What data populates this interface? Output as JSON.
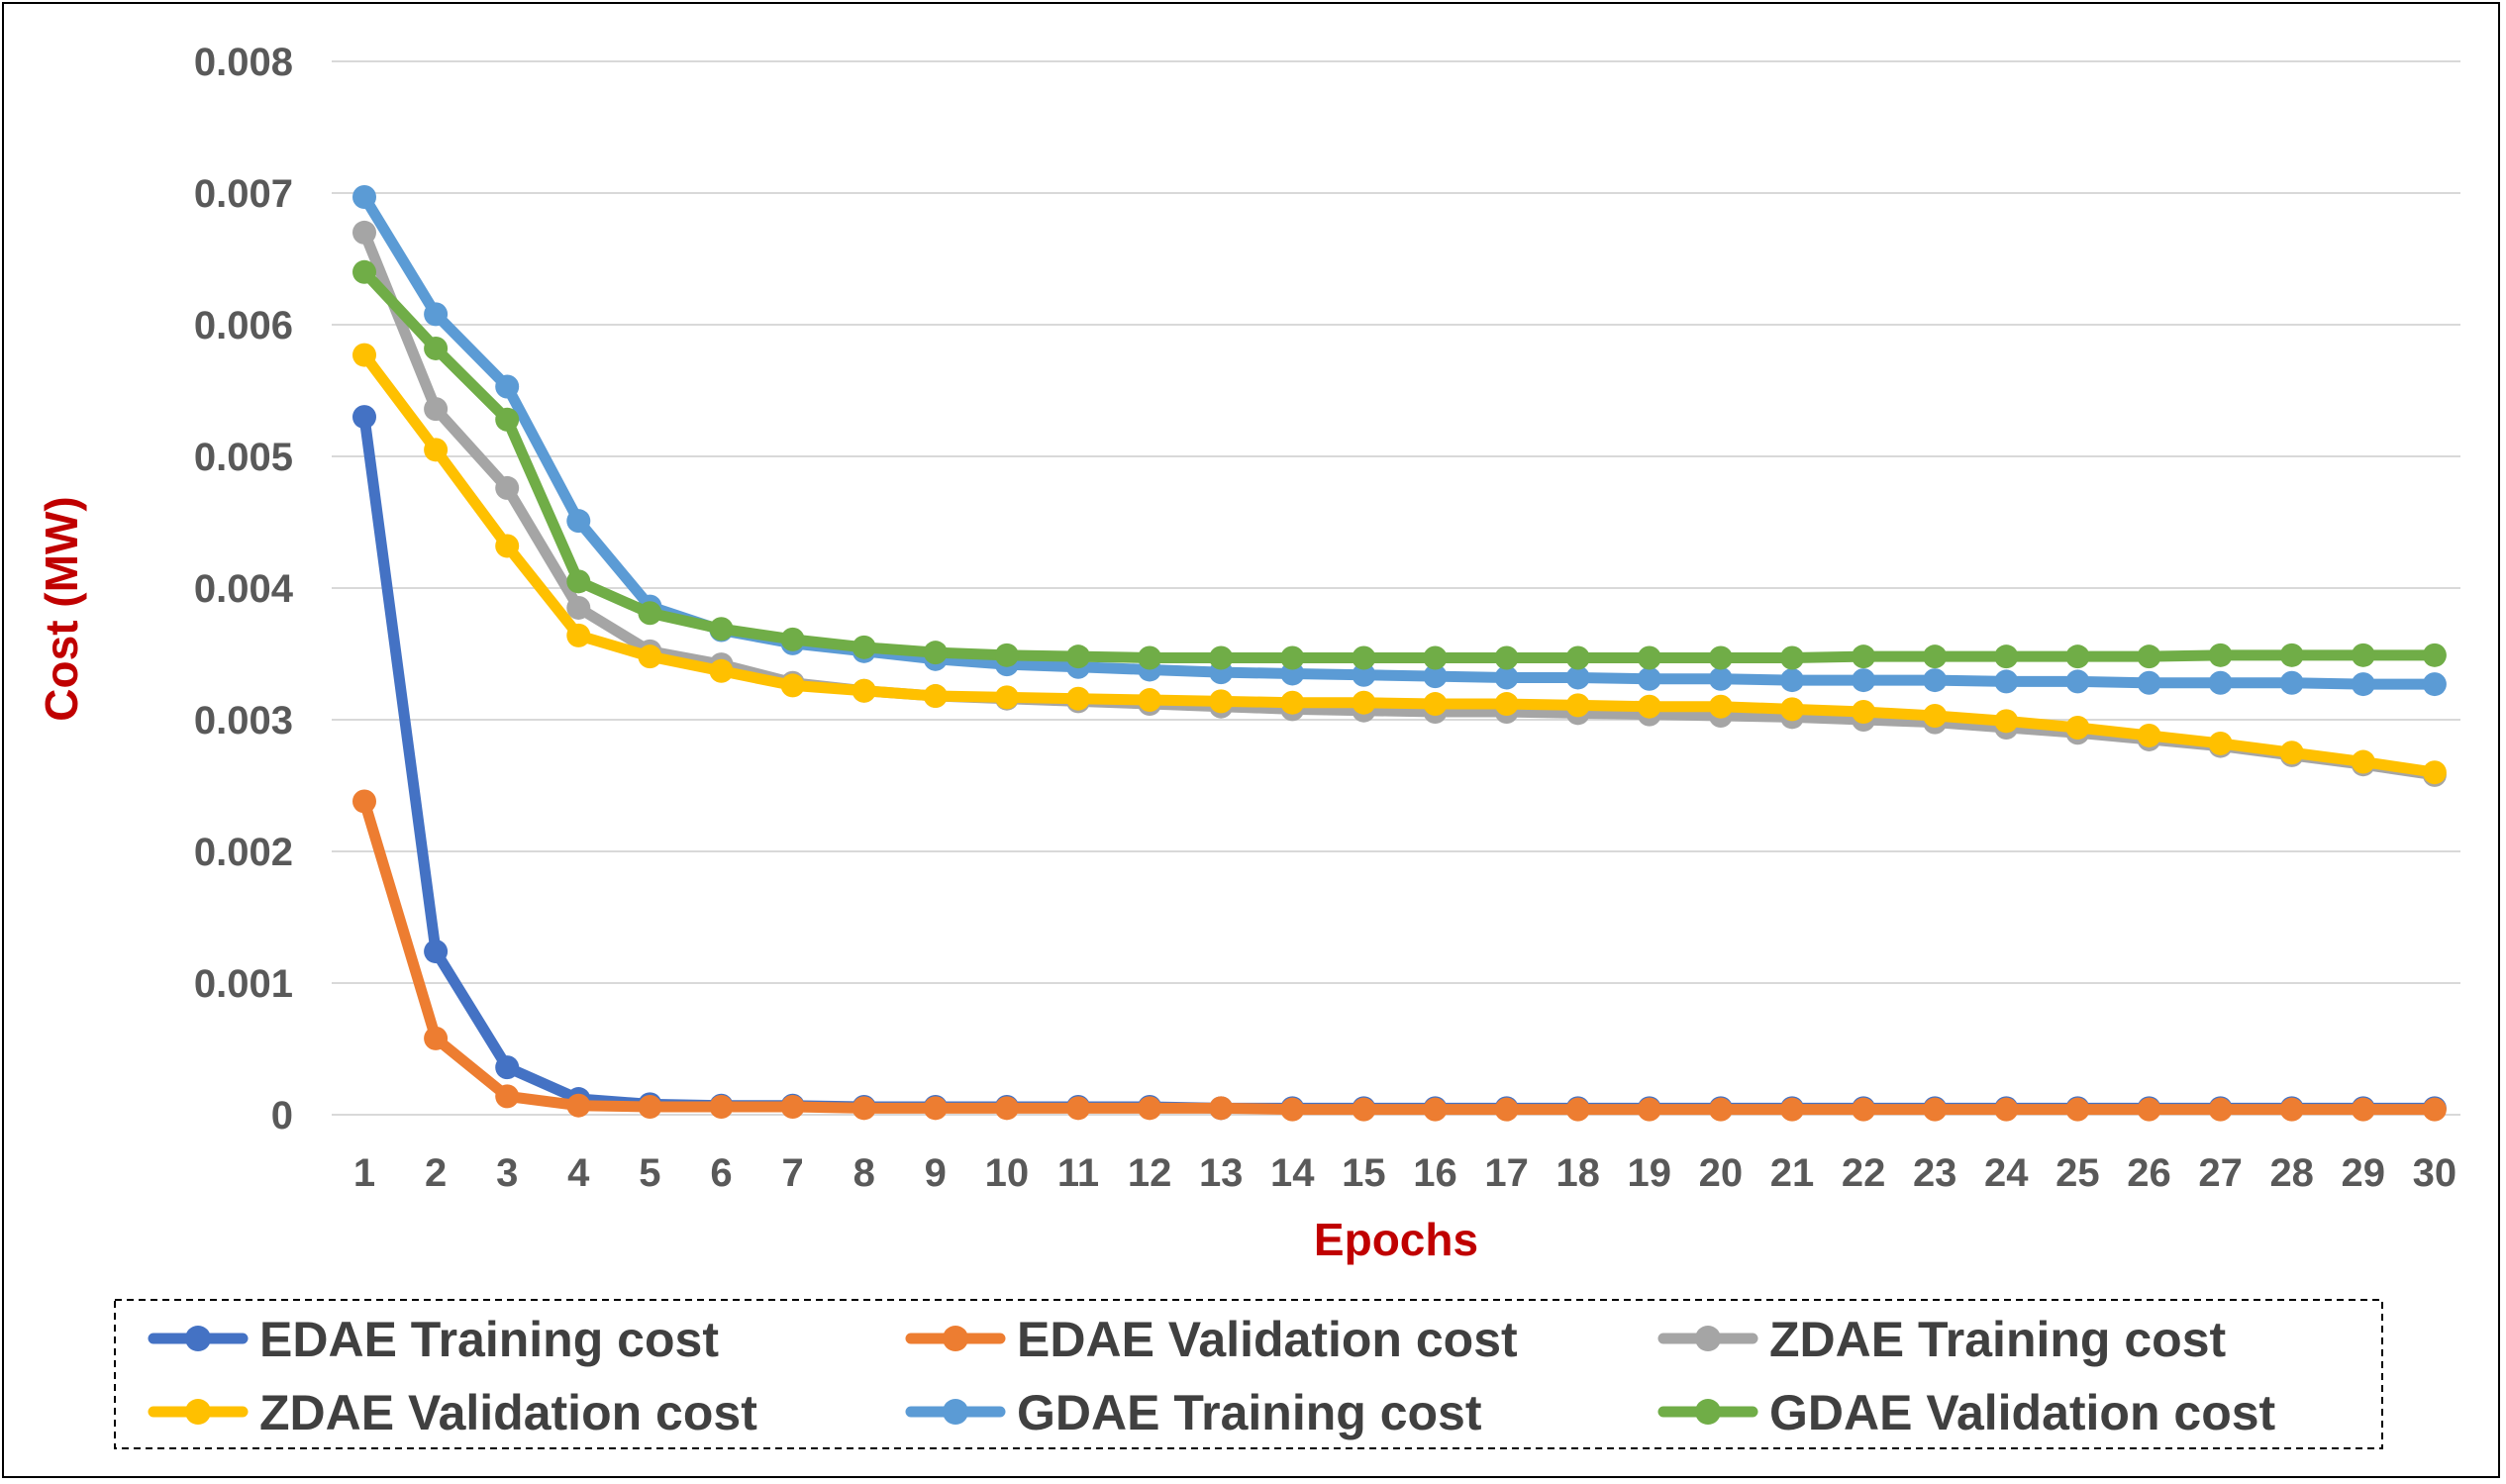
{
  "chart_data": {
    "type": "line",
    "title": "",
    "xlabel": "Epochs",
    "ylabel": "Cost (MW)",
    "x": [
      1,
      2,
      3,
      4,
      5,
      6,
      7,
      8,
      9,
      10,
      11,
      12,
      13,
      14,
      15,
      16,
      17,
      18,
      19,
      20,
      21,
      22,
      23,
      24,
      25,
      26,
      27,
      28,
      29,
      30
    ],
    "y_ticks": [
      "0",
      "0.001",
      "0.002",
      "0.003",
      "0.004",
      "0.005",
      "0.006",
      "0.007",
      "0.008"
    ],
    "ylim": [
      0,
      0.008
    ],
    "grid": true,
    "legend_position": "bottom",
    "series": [
      {
        "name": "EDAE Training cost",
        "color": "#4472c4",
        "values": [
          0.0053,
          0.00124,
          0.00036,
          0.00012,
          8e-05,
          7e-05,
          7e-05,
          6e-05,
          6e-05,
          6e-05,
          6e-05,
          6e-05,
          5e-05,
          5e-05,
          5e-05,
          5e-05,
          5e-05,
          5e-05,
          5e-05,
          5e-05,
          5e-05,
          5e-05,
          5e-05,
          5e-05,
          5e-05,
          5e-05,
          5e-05,
          5e-05,
          5e-05,
          5e-05
        ]
      },
      {
        "name": "EDAE Validation cost",
        "color": "#ed7d31",
        "values": [
          0.00238,
          0.00058,
          0.00014,
          7e-05,
          6e-05,
          6e-05,
          6e-05,
          5e-05,
          5e-05,
          5e-05,
          5e-05,
          5e-05,
          5e-05,
          4e-05,
          4e-05,
          4e-05,
          4e-05,
          4e-05,
          4e-05,
          4e-05,
          4e-05,
          4e-05,
          4e-05,
          4e-05,
          4e-05,
          4e-05,
          4e-05,
          4e-05,
          4e-05,
          4e-05
        ]
      },
      {
        "name": "ZDAE Training cost",
        "color": "#a5a5a5",
        "values": [
          0.0067,
          0.00536,
          0.00476,
          0.00385,
          0.00352,
          0.00342,
          0.00328,
          0.00322,
          0.00318,
          0.00316,
          0.00314,
          0.00312,
          0.0031,
          0.00308,
          0.00307,
          0.00306,
          0.00306,
          0.00305,
          0.00304,
          0.00303,
          0.00302,
          0.003,
          0.00298,
          0.00294,
          0.0029,
          0.00285,
          0.0028,
          0.00273,
          0.00266,
          0.00258
        ]
      },
      {
        "name": "ZDAE Validation cost",
        "color": "#ffc000",
        "values": [
          0.00577,
          0.00505,
          0.00432,
          0.00364,
          0.00348,
          0.00337,
          0.00326,
          0.00322,
          0.00318,
          0.00317,
          0.00316,
          0.00315,
          0.00314,
          0.00313,
          0.00313,
          0.00312,
          0.00312,
          0.00311,
          0.0031,
          0.0031,
          0.00308,
          0.00306,
          0.00303,
          0.00299,
          0.00294,
          0.00288,
          0.00282,
          0.00275,
          0.00268,
          0.0026
        ]
      },
      {
        "name": "GDAE Training cost",
        "color": "#5b9bd5",
        "values": [
          0.00697,
          0.00608,
          0.00553,
          0.00451,
          0.00386,
          0.00368,
          0.00358,
          0.00352,
          0.00346,
          0.00342,
          0.0034,
          0.00338,
          0.00336,
          0.00335,
          0.00334,
          0.00333,
          0.00332,
          0.00332,
          0.00331,
          0.00331,
          0.0033,
          0.0033,
          0.0033,
          0.00329,
          0.00329,
          0.00328,
          0.00328,
          0.00328,
          0.00327,
          0.00327
        ]
      },
      {
        "name": "GDAE Validation cost",
        "color": "#70ad47",
        "values": [
          0.0064,
          0.00582,
          0.00528,
          0.00405,
          0.00381,
          0.00369,
          0.00361,
          0.00355,
          0.00351,
          0.00349,
          0.00348,
          0.00347,
          0.00347,
          0.00347,
          0.00347,
          0.00347,
          0.00347,
          0.00347,
          0.00347,
          0.00347,
          0.00347,
          0.00348,
          0.00348,
          0.00348,
          0.00348,
          0.00348,
          0.00349,
          0.00349,
          0.00349,
          0.00349
        ]
      }
    ]
  }
}
